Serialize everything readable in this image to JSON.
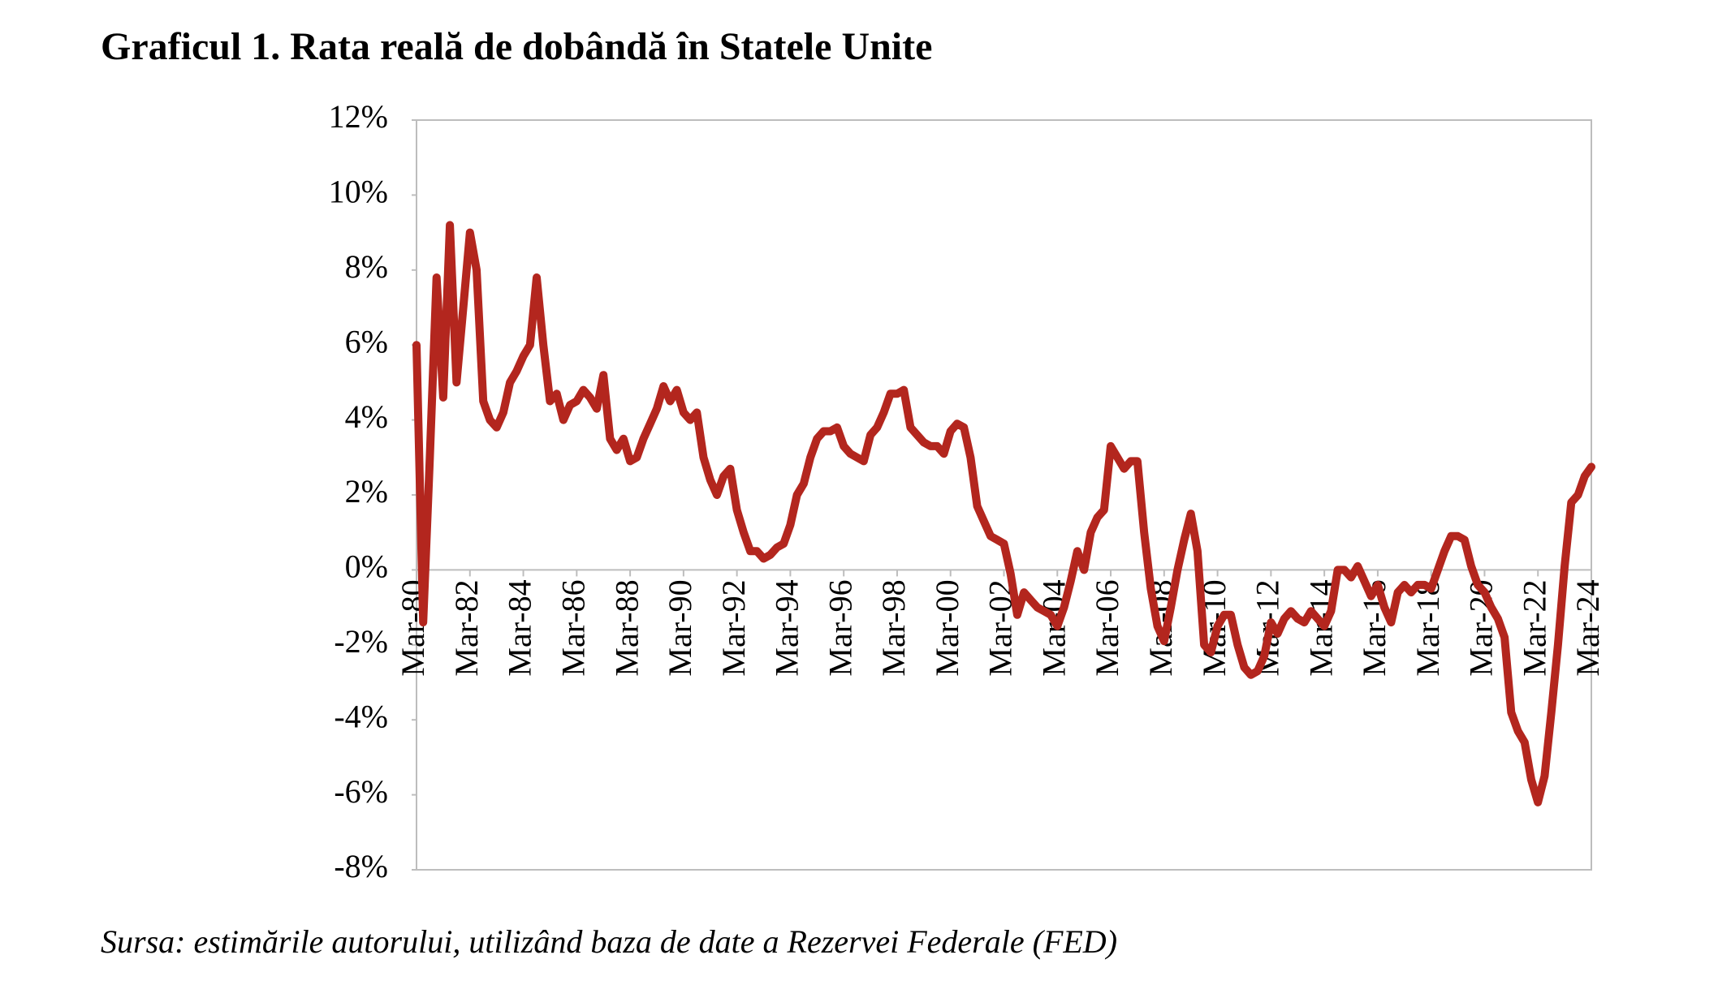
{
  "chart_data": {
    "type": "line",
    "title": "Graficul 1. Rata reală de dobândă în Statele Unite",
    "source": "Sursa: estimările autorului, utilizând baza de date a Rezervei Federale (FED)",
    "color": "#b3261e",
    "categories": [
      "Mar-80",
      null,
      null,
      null,
      null,
      null,
      null,
      null,
      "Mar-82",
      null,
      null,
      null,
      null,
      null,
      null,
      null,
      "Mar-84",
      null,
      null,
      null,
      null,
      null,
      null,
      null,
      "Mar-86",
      null,
      null,
      null,
      null,
      null,
      null,
      null,
      "Mar-88",
      null,
      null,
      null,
      null,
      null,
      null,
      null,
      "Mar-90",
      null,
      null,
      null,
      null,
      null,
      null,
      null,
      "Mar-92",
      null,
      null,
      null,
      null,
      null,
      null,
      null,
      "Mar-94",
      null,
      null,
      null,
      null,
      null,
      null,
      null,
      "Mar-96",
      null,
      null,
      null,
      null,
      null,
      null,
      null,
      "Mar-98",
      null,
      null,
      null,
      null,
      null,
      null,
      null,
      "Mar-00",
      null,
      null,
      null,
      null,
      null,
      null,
      null,
      "Mar-02",
      null,
      null,
      null,
      null,
      null,
      null,
      null,
      "Mar-04",
      null,
      null,
      null,
      null,
      null,
      null,
      null,
      "Mar-06",
      null,
      null,
      null,
      null,
      null,
      null,
      null,
      "Mar-08",
      null,
      null,
      null,
      null,
      null,
      null,
      null,
      "Mar-10",
      null,
      null,
      null,
      null,
      null,
      null,
      null,
      "Mar-12",
      null,
      null,
      null,
      null,
      null,
      null,
      null,
      "Mar-14",
      null,
      null,
      null,
      null,
      null,
      null,
      null,
      "Mar-16",
      null,
      null,
      null,
      null,
      null,
      null,
      null,
      "Mar-18",
      null,
      null,
      null,
      null,
      null,
      null,
      null,
      "Mar-20",
      null,
      null,
      null,
      null,
      null,
      null,
      null,
      "Mar-22",
      null,
      null,
      null,
      null,
      null,
      null,
      null,
      "Mar-24"
    ],
    "values": [
      6.0,
      -1.4,
      3.0,
      7.8,
      4.6,
      9.2,
      5.0,
      7.0,
      9.0,
      8.0,
      4.5,
      4.0,
      3.8,
      4.2,
      5.0,
      5.3,
      5.7,
      6.0,
      7.8,
      6.0,
      4.5,
      4.7,
      4.0,
      4.4,
      4.5,
      4.8,
      4.6,
      4.3,
      5.2,
      3.5,
      3.2,
      3.5,
      2.9,
      3.0,
      3.5,
      3.9,
      4.3,
      4.9,
      4.5,
      4.8,
      4.2,
      4.0,
      4.2,
      3.0,
      2.4,
      2.0,
      2.5,
      2.7,
      1.6,
      1.0,
      0.5,
      0.5,
      0.3,
      0.4,
      0.6,
      0.7,
      1.2,
      2.0,
      2.3,
      3.0,
      3.5,
      3.7,
      3.7,
      3.8,
      3.3,
      3.1,
      3.0,
      2.9,
      3.6,
      3.8,
      4.2,
      4.7,
      4.7,
      4.8,
      3.8,
      3.6,
      3.4,
      3.3,
      3.3,
      3.1,
      3.7,
      3.9,
      3.8,
      3.0,
      1.7,
      1.3,
      0.9,
      0.8,
      0.7,
      -0.1,
      -1.2,
      -0.6,
      -0.8,
      -1.0,
      -1.1,
      -1.2,
      -1.5,
      -1.0,
      -0.3,
      0.5,
      0.0,
      1.0,
      1.4,
      1.6,
      3.3,
      3.0,
      2.7,
      2.9,
      2.9,
      1.0,
      -0.5,
      -1.5,
      -1.9,
      -1.0,
      0.0,
      0.8,
      1.5,
      0.5,
      -2.0,
      -2.2,
      -1.5,
      -1.2,
      -1.2,
      -2.0,
      -2.6,
      -2.8,
      -2.7,
      -2.3,
      -1.4,
      -1.7,
      -1.3,
      -1.1,
      -1.3,
      -1.4,
      -1.1,
      -1.3,
      -1.5,
      -1.1,
      0.0,
      0.0,
      -0.2,
      0.1,
      -0.3,
      -0.7,
      -0.4,
      -1.0,
      -1.4,
      -0.6,
      -0.4,
      -0.6,
      -0.4,
      -0.4,
      -0.5,
      0.0,
      0.5,
      0.9,
      0.9,
      0.8,
      0.1,
      -0.4,
      -0.6,
      -1.0,
      -1.3,
      -1.8,
      -3.8,
      -4.3,
      -4.6,
      -5.6,
      -6.2,
      -5.5,
      -3.8,
      -2.0,
      0.1,
      1.8,
      2.0,
      2.5,
      2.75
    ],
    "ylim": [
      -8,
      12
    ],
    "yticks": [
      {
        "value": -8,
        "label": "-8%"
      },
      {
        "value": -6,
        "label": "-6%"
      },
      {
        "value": -4,
        "label": "-4%"
      },
      {
        "value": -2,
        "label": "-2%"
      },
      {
        "value": 0,
        "label": "0%"
      },
      {
        "value": 2,
        "label": "2%"
      },
      {
        "value": 4,
        "label": "4%"
      },
      {
        "value": 6,
        "label": "6%"
      },
      {
        "value": 8,
        "label": "8%"
      },
      {
        "value": 10,
        "label": "10%"
      },
      {
        "value": 12,
        "label": "12%"
      }
    ]
  }
}
